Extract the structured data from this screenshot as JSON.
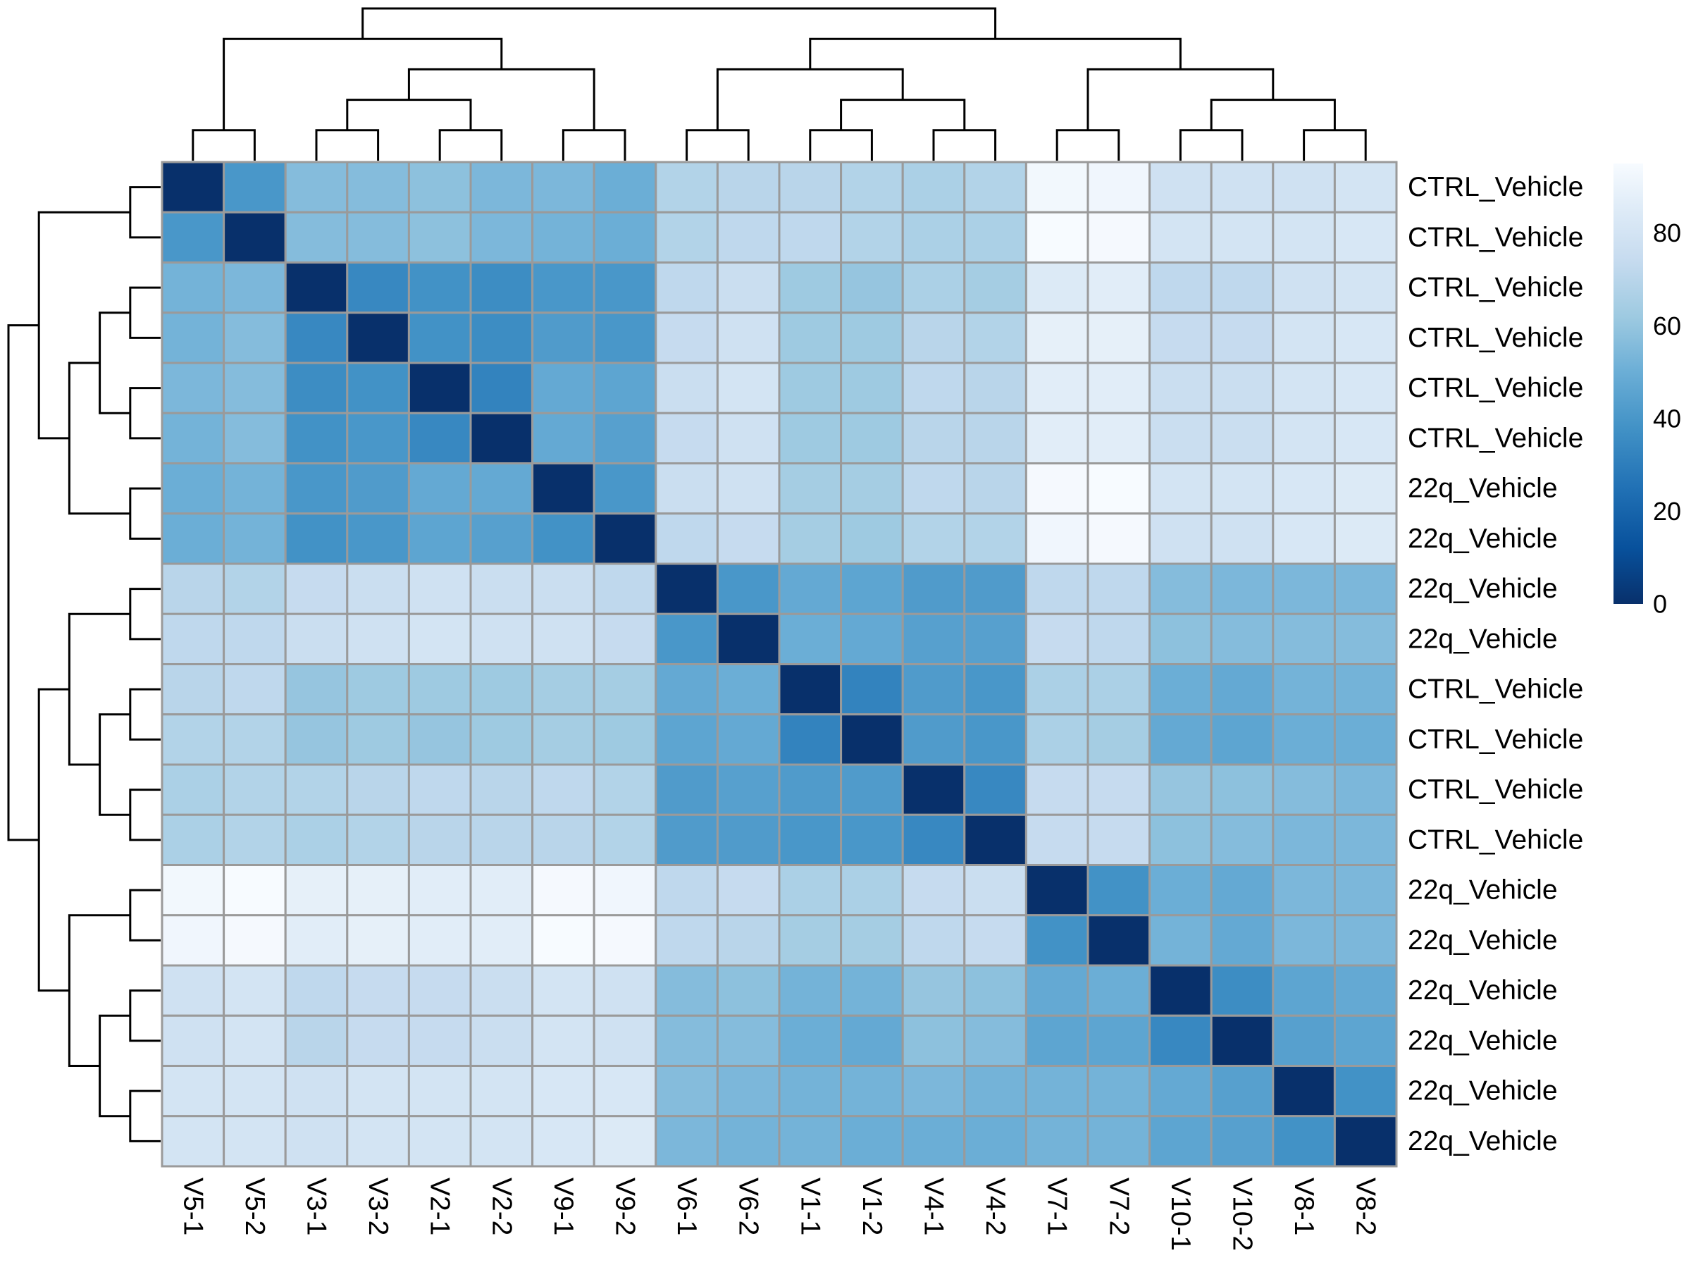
{
  "chart_data": {
    "type": "heatmap",
    "title": "",
    "row_labels": [
      "CTRL_Vehicle",
      "CTRL_Vehicle",
      "CTRL_Vehicle",
      "CTRL_Vehicle",
      "CTRL_Vehicle",
      "CTRL_Vehicle",
      "22q_Vehicle",
      "22q_Vehicle",
      "22q_Vehicle",
      "22q_Vehicle",
      "CTRL_Vehicle",
      "CTRL_Vehicle",
      "CTRL_Vehicle",
      "CTRL_Vehicle",
      "22q_Vehicle",
      "22q_Vehicle",
      "22q_Vehicle",
      "22q_Vehicle",
      "22q_Vehicle",
      "22q_Vehicle"
    ],
    "col_labels": [
      "V5-1",
      "V5-2",
      "V3-1",
      "V3-2",
      "V2-1",
      "V2-2",
      "V9-1",
      "V9-2",
      "V6-1",
      "V6-2",
      "V1-1",
      "V1-2",
      "V4-1",
      "V4-2",
      "V7-1",
      "V7-2",
      "V10-1",
      "V10-2",
      "V8-1",
      "V8-2"
    ],
    "values": [
      [
        0,
        40,
        56,
        56,
        58,
        54,
        54,
        50,
        68,
        70,
        70,
        68,
        66,
        68,
        93,
        92,
        78,
        78,
        78,
        80
      ],
      [
        40,
        0,
        56,
        56,
        58,
        54,
        52,
        50,
        68,
        72,
        72,
        68,
        66,
        66,
        95,
        94,
        80,
        80,
        80,
        82
      ],
      [
        52,
        54,
        0,
        34,
        38,
        36,
        40,
        40,
        72,
        76,
        62,
        60,
        66,
        64,
        84,
        86,
        72,
        72,
        78,
        80
      ],
      [
        52,
        56,
        34,
        0,
        38,
        36,
        42,
        40,
        74,
        78,
        62,
        62,
        70,
        68,
        88,
        88,
        74,
        74,
        80,
        82
      ],
      [
        54,
        56,
        36,
        38,
        0,
        32,
        48,
        46,
        76,
        80,
        62,
        62,
        72,
        70,
        86,
        86,
        76,
        76,
        80,
        82
      ],
      [
        52,
        56,
        38,
        40,
        34,
        0,
        48,
        44,
        74,
        78,
        62,
        62,
        70,
        70,
        86,
        86,
        76,
        76,
        80,
        82
      ],
      [
        50,
        52,
        40,
        42,
        48,
        48,
        0,
        40,
        76,
        78,
        64,
        64,
        72,
        70,
        94,
        95,
        80,
        80,
        82,
        84
      ],
      [
        50,
        52,
        38,
        40,
        46,
        44,
        38,
        0,
        72,
        74,
        64,
        62,
        68,
        68,
        92,
        94,
        78,
        78,
        82,
        84
      ],
      [
        70,
        68,
        74,
        76,
        78,
        76,
        76,
        72,
        0,
        40,
        48,
        46,
        42,
        42,
        72,
        72,
        56,
        54,
        54,
        54
      ],
      [
        72,
        72,
        76,
        78,
        80,
        78,
        78,
        74,
        40,
        0,
        50,
        48,
        44,
        44,
        74,
        72,
        58,
        56,
        56,
        56
      ],
      [
        70,
        72,
        60,
        62,
        62,
        62,
        64,
        64,
        48,
        50,
        0,
        32,
        42,
        40,
        66,
        66,
        50,
        48,
        52,
        52
      ],
      [
        68,
        68,
        60,
        62,
        60,
        62,
        64,
        62,
        46,
        48,
        32,
        0,
        42,
        40,
        66,
        64,
        48,
        46,
        50,
        50
      ],
      [
        66,
        68,
        68,
        70,
        72,
        70,
        72,
        68,
        42,
        44,
        42,
        42,
        0,
        34,
        74,
        74,
        60,
        58,
        56,
        54
      ],
      [
        66,
        68,
        66,
        68,
        70,
        70,
        70,
        68,
        42,
        42,
        40,
        40,
        34,
        0,
        74,
        74,
        58,
        56,
        54,
        54
      ],
      [
        93,
        95,
        88,
        88,
        86,
        86,
        94,
        92,
        72,
        74,
        66,
        66,
        74,
        76,
        0,
        38,
        50,
        48,
        54,
        54
      ],
      [
        92,
        94,
        86,
        88,
        86,
        86,
        95,
        94,
        72,
        70,
        64,
        64,
        72,
        74,
        38,
        0,
        52,
        48,
        54,
        54
      ],
      [
        78,
        80,
        72,
        74,
        74,
        76,
        80,
        78,
        56,
        58,
        52,
        52,
        60,
        58,
        48,
        50,
        0,
        36,
        46,
        48
      ],
      [
        78,
        80,
        70,
        74,
        74,
        76,
        80,
        78,
        56,
        56,
        50,
        48,
        58,
        56,
        46,
        46,
        34,
        0,
        44,
        46
      ],
      [
        80,
        80,
        78,
        80,
        80,
        80,
        82,
        82,
        56,
        54,
        52,
        52,
        54,
        52,
        52,
        52,
        48,
        44,
        0,
        38
      ],
      [
        80,
        80,
        78,
        80,
        80,
        80,
        82,
        84,
        54,
        52,
        52,
        50,
        50,
        50,
        52,
        52,
        46,
        44,
        38,
        0
      ]
    ],
    "color_scale": {
      "min": 0,
      "max": 95,
      "stops": [
        {
          "value": 0,
          "color": "#08306b"
        },
        {
          "value": 12,
          "color": "#08519c"
        },
        {
          "value": 25,
          "color": "#2171b5"
        },
        {
          "value": 38,
          "color": "#4292c6"
        },
        {
          "value": 50,
          "color": "#6baed6"
        },
        {
          "value": 62,
          "color": "#9ecae1"
        },
        {
          "value": 74,
          "color": "#c6dbef"
        },
        {
          "value": 85,
          "color": "#deebf7"
        },
        {
          "value": 95,
          "color": "#f7fbff"
        }
      ]
    },
    "legend": {
      "ticks": [
        0,
        20,
        40,
        60,
        80
      ],
      "tick_labels": [
        "0",
        "20",
        "40",
        "60",
        "80"
      ],
      "placement": "right"
    },
    "cell_border_color": "#9a9a9a",
    "row_dendrogram": true,
    "col_dendrogram": true,
    "col_order_clusters": [
      [
        "V5-1",
        "V5-2"
      ],
      [
        "V3-1",
        "V3-2"
      ],
      [
        "V2-1",
        "V2-2"
      ],
      [
        "V9-1",
        "V9-2"
      ],
      [
        "V6-1",
        "V6-2"
      ],
      [
        "V1-1",
        "V1-2"
      ],
      [
        "V4-1",
        "V4-2"
      ],
      [
        "V7-1",
        "V7-2"
      ],
      [
        "V10-1",
        "V10-2"
      ],
      [
        "V8-1",
        "V8-2"
      ]
    ]
  }
}
